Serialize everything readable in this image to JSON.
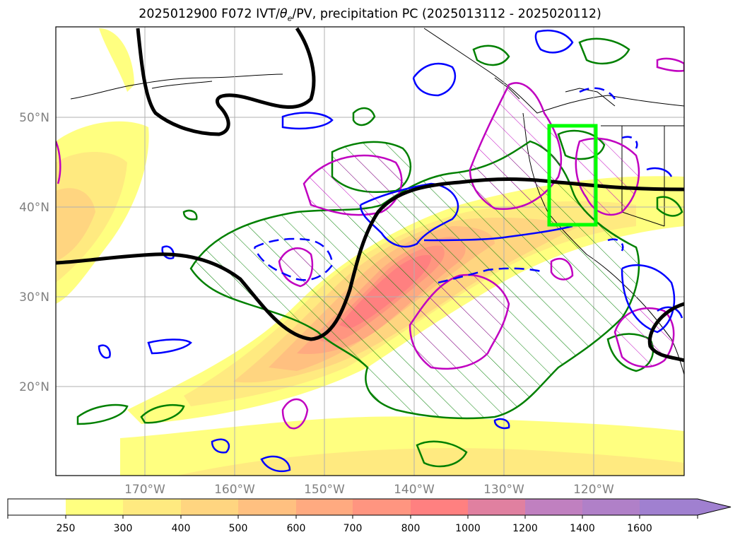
{
  "title": {
    "prefix": "2025012900 F072 IVT/",
    "theta": "θ",
    "theta_sub": "e",
    "suffix": "/PV, precipitation PC (2025013112 - 2025020112)"
  },
  "map": {
    "lon_ticks": [
      "170°W",
      "160°W",
      "150°W",
      "140°W",
      "130°W",
      "120°W"
    ],
    "lat_ticks": [
      "20°N",
      "30°N",
      "40°N",
      "50°N"
    ],
    "region_box": {
      "lon": [
        -125,
        -120
      ],
      "lat": [
        38,
        49
      ],
      "color": "#00ff00"
    },
    "contour_colors": {
      "pv": "#000000",
      "theta_e": "#0000ff",
      "precip_a": "#008000",
      "precip_b": "#c000c0"
    }
  },
  "colorbar": {
    "labels": [
      "250",
      "300",
      "400",
      "500",
      "600",
      "700",
      "800",
      "1000",
      "1200",
      "1400",
      "1600"
    ],
    "colors": [
      "#ffffff",
      "#ffff80",
      "#ffea80",
      "#ffd580",
      "#ffc080",
      "#ffaa80",
      "#ff9580",
      "#ff8080",
      "#e080a0",
      "#c080c0",
      "#a080d0"
    ]
  }
}
